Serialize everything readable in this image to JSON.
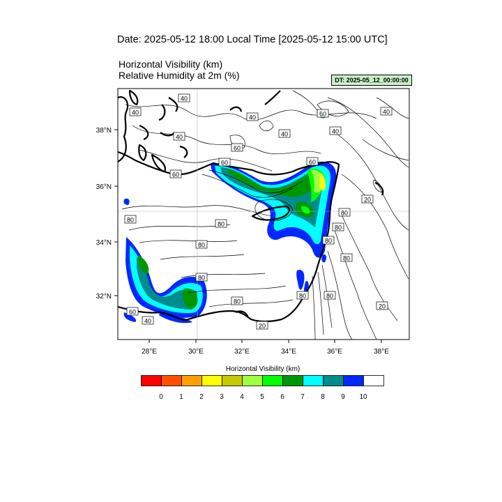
{
  "header": {
    "date_line": "Date: 2025-05-12  18:00 Local Time [2025-05-12  15:00 UTC]",
    "var_line_1": "Horizontal Visibility   (km)",
    "var_line_2": "Relative Humidity at 2m   (%)",
    "dt_badge": "DT: 2025-05_12_00:00:00"
  },
  "map": {
    "lon_ticks": [
      "28°E",
      "30°E",
      "32°E",
      "34°E",
      "36°E",
      "38°E"
    ],
    "lat_ticks": [
      "38°N",
      "36°N",
      "34°N",
      "32°N"
    ],
    "contour_labels": [
      "40",
      "40",
      "40",
      "40",
      "40",
      "40",
      "40",
      "60",
      "60",
      "60",
      "60",
      "60",
      "80",
      "80",
      "80",
      "80",
      "80",
      "80",
      "80",
      "80",
      "80",
      "80",
      "80",
      "60",
      "40",
      "20",
      "20",
      "20"
    ],
    "colors": {
      "coast": "#000000",
      "contour": "#000000",
      "grid": "#b4b4b4"
    }
  },
  "colorbar": {
    "title": "Horizontal Visibility  (km)",
    "colors": [
      "#ff0000",
      "#ff5000",
      "#ffa000",
      "#ffff00",
      "#c8c800",
      "#a0ff40",
      "#00ff00",
      "#009600",
      "#00ffff",
      "#008c8c",
      "#0028ff",
      "#ffffff"
    ],
    "labels": [
      "0",
      "1",
      "2",
      "3",
      "4",
      "5",
      "6",
      "7",
      "8",
      "9",
      "10"
    ]
  }
}
